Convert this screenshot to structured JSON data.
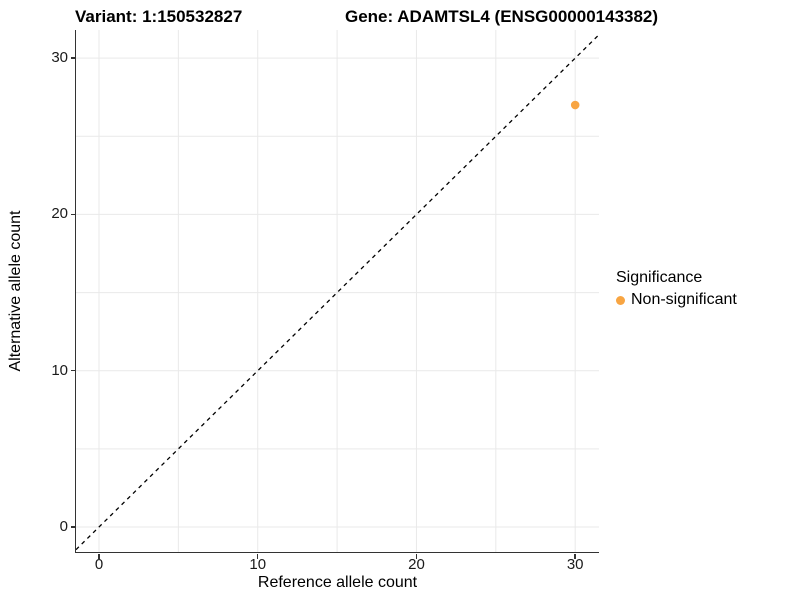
{
  "title": {
    "variant": "Variant: 1:150532827",
    "gene": "Gene: ADAMTSL4 (ENSG00000143382)"
  },
  "axes": {
    "x_label": "Reference allele count",
    "y_label": "Alternative allele count"
  },
  "legend": {
    "title": "Significance",
    "items": [
      {
        "label": "Non-significant",
        "color": "#F8A542"
      }
    ]
  },
  "colors": {
    "point": "#F8A542",
    "axis_line": "#333333",
    "gridline": "#E9E9E9",
    "reference_line": "#000000",
    "background": "#FFFFFF"
  },
  "chart_data": {
    "type": "scatter",
    "title": "Variant: 1:150532827    Gene: ADAMTSL4 (ENSG00000143382)",
    "xlabel": "Reference allele count",
    "ylabel": "Alternative allele count",
    "x_ticks": [
      0,
      10,
      20,
      30
    ],
    "y_ticks": [
      0,
      10,
      20,
      30
    ],
    "gridline_step": 5,
    "grid": true,
    "xlim": [
      -1.45,
      31.5
    ],
    "ylim": [
      -1.6,
      31.8
    ],
    "legend_position": "right",
    "series": [
      {
        "name": "Non-significant",
        "color": "#F8A542",
        "points": [
          {
            "x": 30,
            "y": 27
          }
        ]
      }
    ],
    "reference_line": {
      "kind": "abline",
      "slope": 1,
      "intercept": 0,
      "style": "dashed",
      "color": "#000000"
    }
  }
}
